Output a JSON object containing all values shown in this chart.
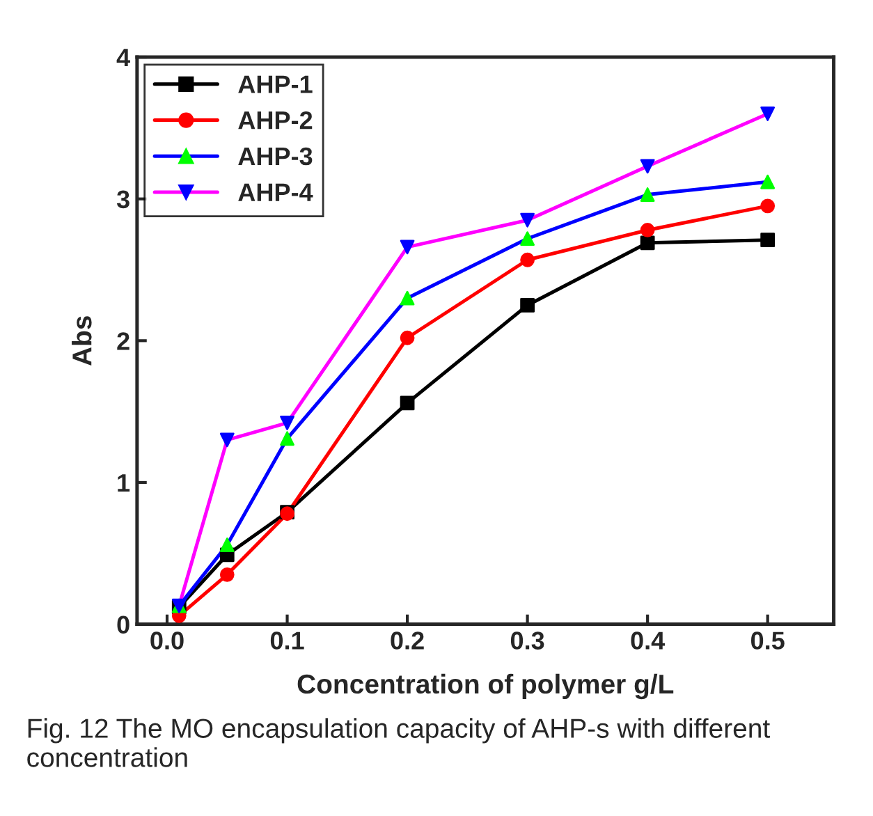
{
  "chart_data": {
    "type": "line",
    "xlabel": "Concentration of polymer g/L",
    "ylabel": "Abs",
    "x": [
      0.01,
      0.05,
      0.1,
      0.2,
      0.3,
      0.4,
      0.5
    ],
    "series": [
      {
        "name": "AHP-1",
        "color": "#000000",
        "colors": [
          "#000000",
          "#000000",
          "#000000",
          "#000000",
          "#000000",
          "#000000",
          "#000000"
        ],
        "marker": "square",
        "values": [
          0.12,
          0.49,
          0.79,
          1.56,
          2.25,
          2.69,
          2.71
        ]
      },
      {
        "name": "AHP-2",
        "color": "#ff0000",
        "colors": [
          "#ff0000",
          "#ff0000",
          "#ff0000",
          "#ff0000",
          "#ff0000",
          "#ff0000",
          "#ff0000"
        ],
        "marker": "circle",
        "values": [
          0.06,
          0.35,
          0.78,
          2.02,
          2.57,
          2.78,
          2.95
        ]
      },
      {
        "name": "AHP-3",
        "color": "#0000ff",
        "colors": [
          "#00ff00",
          "#00ff00",
          "#00ff00",
          "#00ff00",
          "#00ff00",
          "#00ff00",
          "#00ff00"
        ],
        "marker": "triangle",
        "values": [
          0.13,
          0.56,
          1.31,
          2.3,
          2.72,
          3.03,
          3.12
        ]
      },
      {
        "name": "AHP-4",
        "color": "#ff00ff",
        "colors": [
          "#0000ff",
          "#0000ff",
          "#0000ff",
          "#0000ff",
          "#0000ff",
          "#0000ff",
          "#0000ff"
        ],
        "marker": "triangle_down",
        "values": [
          0.13,
          1.3,
          1.42,
          2.66,
          2.85,
          3.23,
          3.6
        ]
      }
    ],
    "xlim": [
      -0.025,
      0.555
    ],
    "ylim": [
      0,
      4
    ],
    "xticks": [
      {
        "value": 0,
        "label": "0.0"
      },
      {
        "value": 0.1,
        "label": "0.1"
      },
      {
        "value": 0.2,
        "label": "0.2"
      },
      {
        "value": 0.3,
        "label": "0.3"
      },
      {
        "value": 0.4,
        "label": "0.4"
      },
      {
        "value": 0.5,
        "label": "0.5"
      }
    ],
    "yticks": [
      0,
      1,
      2,
      3,
      4
    ],
    "grid": false,
    "legend": "top left",
    "annotations": [
      "Fig. 12 The MO encapsulation capacity of AHP-s with different concentration"
    ]
  }
}
